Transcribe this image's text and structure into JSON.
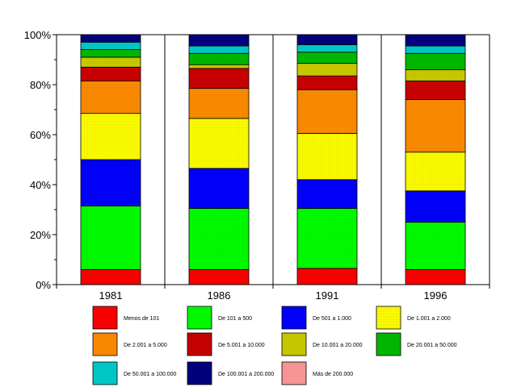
{
  "chart_data": {
    "type": "bar",
    "stacked": true,
    "percent": true,
    "title": "",
    "xlabel": "",
    "ylabel": "",
    "ylim": [
      0,
      100
    ],
    "y_ticks": [
      "0%",
      "20%",
      "40%",
      "60%",
      "80%",
      "100%"
    ],
    "grid": "vertical lines between categories",
    "legend_position": "bottom",
    "categories": [
      "1981",
      "1986",
      "1991",
      "1996"
    ],
    "series": [
      {
        "name": "Menos de 101",
        "color": "#ff0000",
        "values": [
          6,
          6,
          6.5,
          6
        ]
      },
      {
        "name": "De 101 a 500",
        "color": "#00ff00",
        "values": [
          25.5,
          24.5,
          24,
          19
        ]
      },
      {
        "name": "De 501 a 1.000",
        "color": "#0000ff",
        "values": [
          18.5,
          16,
          11.5,
          12.5
        ]
      },
      {
        "name": "De 1.001 a 2.000",
        "color": "#ffff00",
        "values": [
          18.5,
          20,
          18.5,
          15.5
        ]
      },
      {
        "name": "De 2.001 a 5.000",
        "color": "#ff8c00",
        "values": [
          13,
          12,
          17.5,
          21
        ]
      },
      {
        "name": "De 5.001 a 10.000",
        "color": "#cc0000",
        "values": [
          5.5,
          8,
          5.5,
          7.5
        ]
      },
      {
        "name": "De 10.001 a 20.000",
        "color": "#cccc00",
        "values": [
          4,
          1.5,
          5,
          4.5
        ]
      },
      {
        "name": "De 20.001 a 50.000",
        "color": "#00bb00",
        "values": [
          3,
          4.5,
          4.5,
          6.5
        ]
      },
      {
        "name": "De 50.001 a 100.000",
        "color": "#00cccc",
        "values": [
          3,
          3,
          3,
          3
        ]
      },
      {
        "name": "De 100.001 a 200.000",
        "color": "#000080",
        "values": [
          3,
          4.5,
          4,
          4.5
        ]
      },
      {
        "name": "Más de 200.000",
        "color": "#ff9999",
        "values": [
          0,
          0,
          0,
          0
        ]
      }
    ]
  }
}
